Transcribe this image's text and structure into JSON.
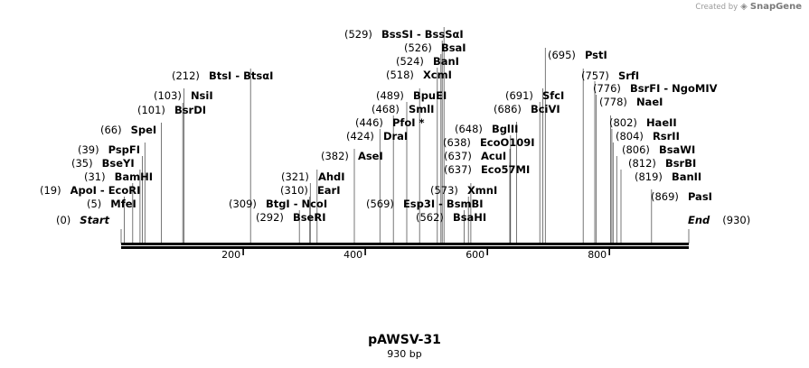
{
  "watermark": {
    "prefix": "Created by",
    "logo_icon": "snapgene-logo-icon",
    "brand": "SnapGene"
  },
  "sequence": {
    "name": "pAWSV-31",
    "length_label": "930 bp",
    "length": 930
  },
  "axis": {
    "ticks": [
      200,
      400,
      600,
      800
    ]
  },
  "ends": [
    {
      "position": 0,
      "position_label": "(0)",
      "name": "Start"
    },
    {
      "position": 930,
      "position_label": "(930)",
      "name": "End"
    }
  ],
  "sites": [
    {
      "position": 5,
      "position_label": "(5)",
      "name": "MfeI"
    },
    {
      "position": 19,
      "position_label": "(19)",
      "name": "ApoI - EcoRI"
    },
    {
      "position": 31,
      "position_label": "(31)",
      "name": "BamHI"
    },
    {
      "position": 35,
      "position_label": "(35)",
      "name": "BseYI"
    },
    {
      "position": 39,
      "position_label": "(39)",
      "name": "PspFI"
    },
    {
      "position": 66,
      "position_label": "(66)",
      "name": "SpeI"
    },
    {
      "position": 101,
      "position_label": "(101)",
      "name": "BsrDI"
    },
    {
      "position": 103,
      "position_label": "(103)",
      "name": "NsiI"
    },
    {
      "position": 212,
      "position_label": "(212)",
      "name": "BtsI - BtsαI"
    },
    {
      "position": 292,
      "position_label": "(292)",
      "name": "BseRI"
    },
    {
      "position": 309,
      "position_label": "(309)",
      "name": "BtgI - NcoI"
    },
    {
      "position": 310,
      "position_label": "(310)",
      "name": "EarI"
    },
    {
      "position": 321,
      "position_label": "(321)",
      "name": "AhdI"
    },
    {
      "position": 382,
      "position_label": "(382)",
      "name": "AseI"
    },
    {
      "position": 424,
      "position_label": "(424)",
      "name": "DraI"
    },
    {
      "position": 446,
      "position_label": "(446)",
      "name": "PfoI *"
    },
    {
      "position": 468,
      "position_label": "(468)",
      "name": "SmlI"
    },
    {
      "position": 489,
      "position_label": "(489)",
      "name": "BpuEI"
    },
    {
      "position": 518,
      "position_label": "(518)",
      "name": "XcmI"
    },
    {
      "position": 524,
      "position_label": "(524)",
      "name": "BanI"
    },
    {
      "position": 526,
      "position_label": "(526)",
      "name": "BsaI"
    },
    {
      "position": 529,
      "position_label": "(529)",
      "name": "BssSI - BssSαI"
    },
    {
      "position": 562,
      "position_label": "(562)",
      "name": "BsaHI"
    },
    {
      "position": 569,
      "position_label": "(569)",
      "name": "Esp3I - BsmBI"
    },
    {
      "position": 573,
      "position_label": "(573)",
      "name": "XmnI"
    },
    {
      "position": 637,
      "position_label": "(637)",
      "name": "Eco57MI"
    },
    {
      "position": 637,
      "position_label": "(637)",
      "name": "AcuI"
    },
    {
      "position": 638,
      "position_label": "(638)",
      "name": "EcoO109I"
    },
    {
      "position": 648,
      "position_label": "(648)",
      "name": "BglII"
    },
    {
      "position": 686,
      "position_label": "(686)",
      "name": "BciVI"
    },
    {
      "position": 691,
      "position_label": "(691)",
      "name": "SfcI"
    },
    {
      "position": 695,
      "position_label": "(695)",
      "name": "PstI"
    },
    {
      "position": 757,
      "position_label": "(757)",
      "name": "SrfI"
    },
    {
      "position": 776,
      "position_label": "(776)",
      "name": "BsrFI - NgoMIV"
    },
    {
      "position": 778,
      "position_label": "(778)",
      "name": "NaeI"
    },
    {
      "position": 802,
      "position_label": "(802)",
      "name": "HaeII"
    },
    {
      "position": 804,
      "position_label": "(804)",
      "name": "RsrII"
    },
    {
      "position": 806,
      "position_label": "(806)",
      "name": "BsaWI"
    },
    {
      "position": 812,
      "position_label": "(812)",
      "name": "BsrBI"
    },
    {
      "position": 819,
      "position_label": "(819)",
      "name": "BanII"
    },
    {
      "position": 869,
      "position_label": "(869)",
      "name": "PasI"
    }
  ]
}
